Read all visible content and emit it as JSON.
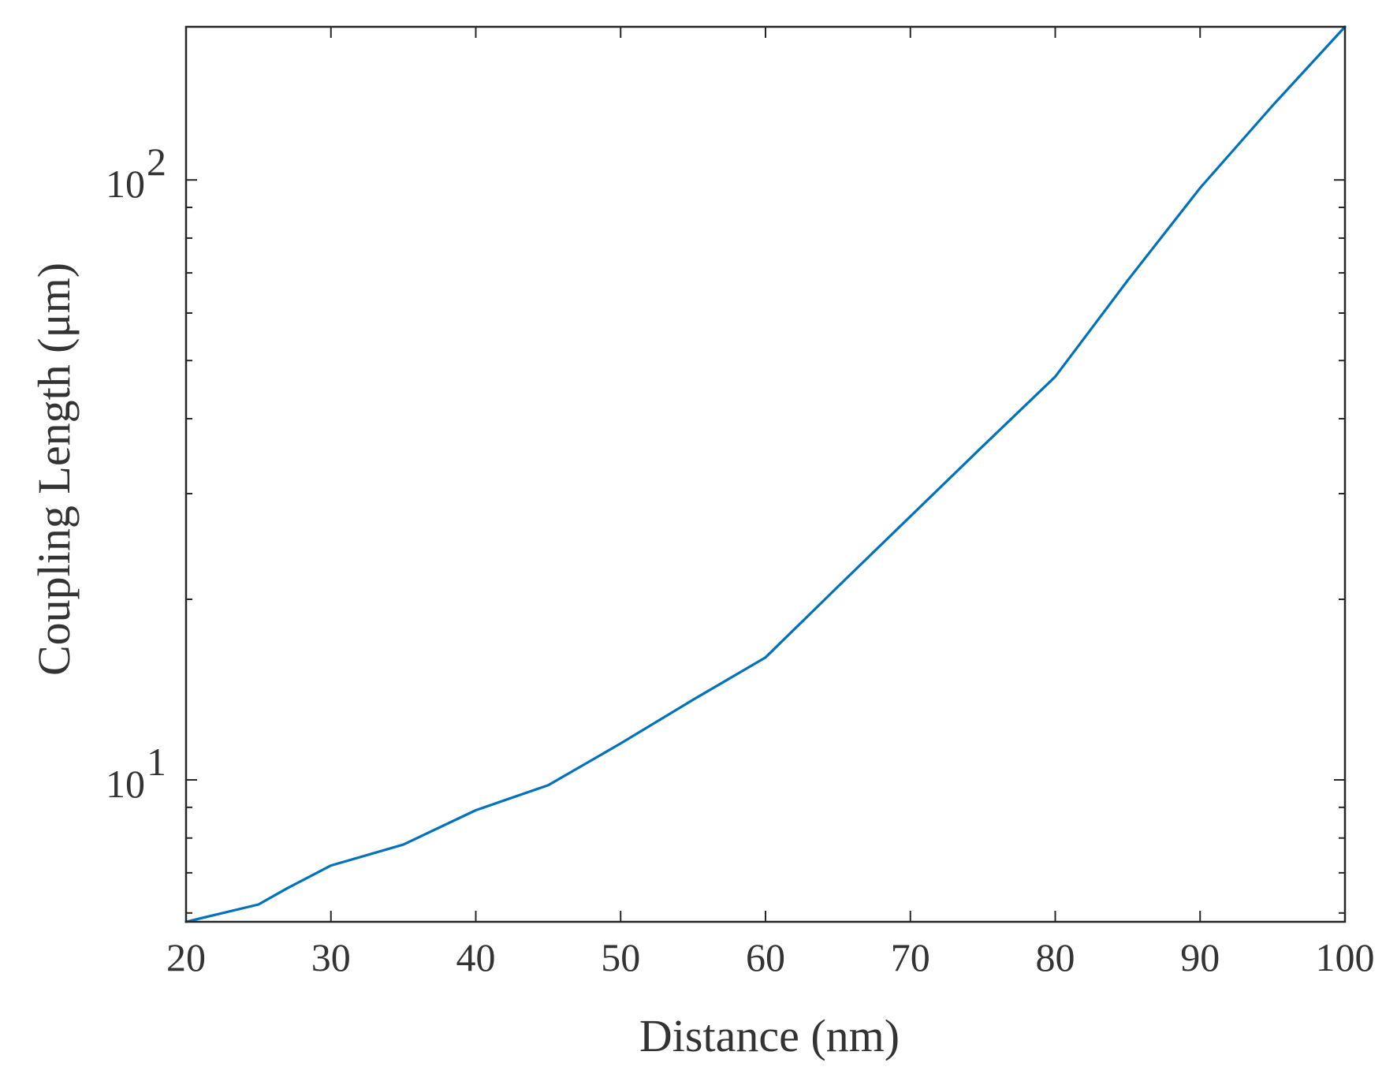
{
  "colors": {
    "series": "#0072BD",
    "axis": "#262626",
    "text": "#333333"
  },
  "chart_data": {
    "type": "line",
    "title": "",
    "xlabel": "Distance (nm)",
    "ylabel": "Coupling Length (μm)",
    "xlim": [
      20,
      100
    ],
    "ylim": [
      5.8,
      180
    ],
    "yscale": "log",
    "grid": false,
    "legend": "none",
    "x_ticks": [
      20,
      30,
      40,
      50,
      60,
      70,
      80,
      90,
      100
    ],
    "x_tick_labels": [
      "20",
      "30",
      "40",
      "50",
      "60",
      "70",
      "80",
      "90",
      "100"
    ],
    "y_major_ticks": [
      {
        "value": 10,
        "base": "10",
        "exp": "1"
      },
      {
        "value": 100,
        "base": "10",
        "exp": "2"
      }
    ],
    "y_minor_ticks": [
      6,
      7,
      8,
      9,
      20,
      30,
      40,
      50,
      60,
      70,
      80,
      90
    ],
    "series": [
      {
        "x": [
          20,
          25,
          27,
          30,
          35,
          40,
          45,
          50,
          55,
          60,
          65,
          70,
          75,
          80,
          85,
          90,
          95,
          100
        ],
        "y": [
          5.8,
          6.2,
          6.6,
          7.2,
          7.8,
          8.9,
          9.8,
          11.5,
          13.6,
          16.0,
          21.0,
          27.5,
          36.0,
          47.0,
          68.0,
          97.0,
          133.0,
          180.0
        ]
      }
    ]
  }
}
